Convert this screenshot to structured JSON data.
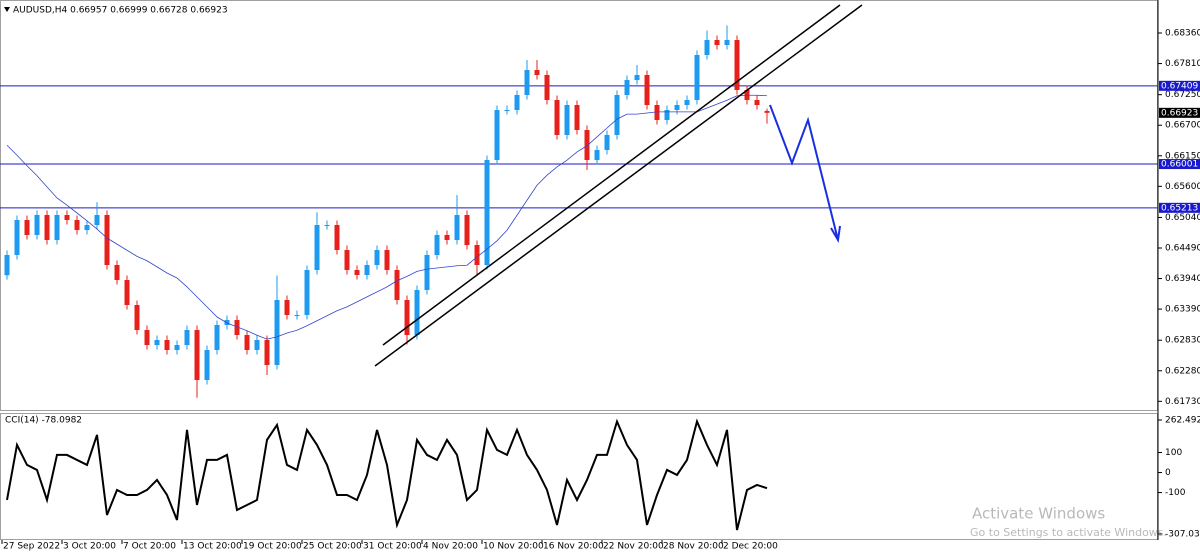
{
  "chart_data": [
    {
      "type": "candlestick",
      "title": "AUDUSD,H4 0.66957 0.66999 0.66728 0.66923",
      "categories": [
        "27 Sep 2022",
        null,
        null,
        null,
        null,
        null,
        "3 Oct 20:00",
        null,
        null,
        null,
        null,
        null,
        "7 Oct 20:00",
        null,
        null,
        null,
        null,
        null,
        "13 Oct 20:00",
        null,
        null,
        null,
        null,
        null,
        "19 Oct 20:00",
        null,
        null,
        null,
        null,
        null,
        "25 Oct 20:00",
        null,
        null,
        null,
        null,
        null,
        "31 Oct 20:00",
        null,
        null,
        null,
        null,
        null,
        "4 Nov 20:00",
        null,
        null,
        null,
        null,
        null,
        "10 Nov 20:00",
        null,
        null,
        null,
        null,
        null,
        "16 Nov 20:00",
        null,
        null,
        null,
        null,
        null,
        "22 Nov 20:00",
        null,
        null,
        null,
        null,
        null,
        "28 Nov 20:00",
        null,
        null,
        null,
        null,
        null,
        "2 Dec 20:00",
        null,
        null,
        null,
        null
      ],
      "open": [
        0.64,
        0.64364,
        0.64994,
        0.64724,
        0.65084,
        0.64634,
        0.65084,
        0.64994,
        0.64814,
        0.64904,
        0.65084,
        0.64184,
        0.63914,
        0.63464,
        0.63014,
        0.62744,
        0.62834,
        0.62654,
        0.62744,
        0.63014,
        0.62114,
        0.62654,
        0.63104,
        0.63194,
        0.62924,
        0.62654,
        0.62834,
        0.62384,
        0.63554,
        0.63284,
        0.63284,
        0.64094,
        0.64904,
        0.64904,
        0.64454,
        0.64094,
        0.64004,
        0.64184,
        0.64454,
        0.64094,
        0.63554,
        0.62924,
        0.63734,
        0.64364,
        0.64724,
        0.64634,
        0.65084,
        0.64544,
        0.64184,
        0.66074,
        0.66974,
        0.66974,
        0.67244,
        0.67694,
        0.67604,
        0.67154,
        0.66524,
        0.67064,
        0.66614,
        0.66074,
        0.66254,
        0.66524,
        0.67244,
        0.67514,
        0.67604,
        0.67064,
        0.66794,
        0.66974,
        0.67064,
        0.67154,
        0.67964,
        0.68234,
        0.68144,
        0.68234,
        0.67334,
        0.67154,
        0.66957
      ],
      "high": [
        0.64444,
        0.65074,
        0.65074,
        0.65164,
        0.65164,
        0.65164,
        0.65164,
        0.65074,
        0.64984,
        0.65314,
        0.65164,
        0.64264,
        0.63994,
        0.63544,
        0.63094,
        0.62914,
        0.62914,
        0.62824,
        0.63094,
        0.63094,
        0.62734,
        0.63184,
        0.63274,
        0.63274,
        0.63004,
        0.62914,
        0.62914,
        0.63994,
        0.63634,
        0.63364,
        0.64174,
        0.65134,
        0.64984,
        0.64984,
        0.64534,
        0.64174,
        0.64264,
        0.64534,
        0.64534,
        0.64174,
        0.63634,
        0.63814,
        0.64444,
        0.64804,
        0.64804,
        0.65444,
        0.65164,
        0.64624,
        0.66154,
        0.67054,
        0.67054,
        0.67324,
        0.67874,
        0.67874,
        0.67684,
        0.67234,
        0.67144,
        0.67144,
        0.66694,
        0.66334,
        0.66604,
        0.67324,
        0.67594,
        0.67784,
        0.67684,
        0.67144,
        0.67054,
        0.67144,
        0.67234,
        0.68044,
        0.68404,
        0.68314,
        0.68494,
        0.68314,
        0.67414,
        0.67234,
        0.66999
      ],
      "low": [
        0.6392,
        0.64284,
        0.64644,
        0.64644,
        0.64554,
        0.64554,
        0.64914,
        0.64734,
        0.64734,
        0.64824,
        0.64104,
        0.63834,
        0.63384,
        0.62934,
        0.62664,
        0.62664,
        0.62574,
        0.62574,
        0.62664,
        0.61794,
        0.62034,
        0.62574,
        0.63024,
        0.62844,
        0.62574,
        0.62574,
        0.62204,
        0.62304,
        0.63204,
        0.63204,
        0.63204,
        0.64014,
        0.64824,
        0.64374,
        0.64014,
        0.63924,
        0.63924,
        0.64104,
        0.64014,
        0.63474,
        0.62754,
        0.62844,
        0.63654,
        0.64284,
        0.64554,
        0.64554,
        0.64464,
        0.63994,
        0.64104,
        0.65994,
        0.66894,
        0.66894,
        0.67164,
        0.67524,
        0.67074,
        0.66444,
        0.66444,
        0.66534,
        0.65894,
        0.65994,
        0.66174,
        0.66444,
        0.67164,
        0.67434,
        0.66984,
        0.66714,
        0.66714,
        0.66894,
        0.66984,
        0.67074,
        0.67884,
        0.68064,
        0.68064,
        0.67254,
        0.67074,
        0.66984,
        0.66728
      ],
      "close": [
        0.64364,
        0.64994,
        0.64724,
        0.65084,
        0.64634,
        0.65084,
        0.64994,
        0.64814,
        0.64904,
        0.65084,
        0.64184,
        0.63914,
        0.63464,
        0.63014,
        0.62744,
        0.62834,
        0.62654,
        0.62744,
        0.63014,
        0.62114,
        0.62654,
        0.63104,
        0.63194,
        0.62924,
        0.62654,
        0.62834,
        0.62384,
        0.63554,
        0.63284,
        0.63284,
        0.64094,
        0.64904,
        0.64904,
        0.64454,
        0.64094,
        0.64004,
        0.64184,
        0.64454,
        0.64094,
        0.63554,
        0.62924,
        0.63734,
        0.64364,
        0.64724,
        0.64634,
        0.65084,
        0.64544,
        0.64184,
        0.66074,
        0.66974,
        0.66974,
        0.67244,
        0.67694,
        0.67604,
        0.67154,
        0.66524,
        0.67064,
        0.66614,
        0.66074,
        0.66254,
        0.66524,
        0.67244,
        0.67514,
        0.67604,
        0.67064,
        0.66794,
        0.66974,
        0.67064,
        0.67154,
        0.67964,
        0.68234,
        0.68144,
        0.68234,
        0.67334,
        0.67154,
        0.67064,
        0.66923
      ],
      "up_color": "#1e9bf0",
      "down_color": "#e8201c",
      "ma": {
        "color": "#3344cc",
        "values": [
          0.6634,
          0.6616,
          0.6597,
          0.6579,
          0.6559,
          0.6539,
          0.6526,
          0.6512,
          0.6498,
          0.6483,
          0.6467,
          0.6456,
          0.6445,
          0.6434,
          0.6426,
          0.6415,
          0.6404,
          0.6395,
          0.6379,
          0.6361,
          0.6343,
          0.6325,
          0.6314,
          0.6307,
          0.63,
          0.6292,
          0.6285,
          0.6289,
          0.6296,
          0.6301,
          0.6309,
          0.6318,
          0.6327,
          0.6336,
          0.6343,
          0.6352,
          0.6361,
          0.637,
          0.6379,
          0.639,
          0.6398,
          0.6407,
          0.6411,
          0.6413,
          0.6415,
          0.6417,
          0.6418,
          0.6433,
          0.6447,
          0.6462,
          0.6481,
          0.6508,
          0.6535,
          0.6562,
          0.658,
          0.6595,
          0.6607,
          0.6622,
          0.6633,
          0.6649,
          0.6665,
          0.6681,
          0.669,
          0.669,
          0.6692,
          0.6694,
          0.6694,
          0.6694,
          0.6694,
          0.6694,
          0.6701,
          0.6708,
          0.6715,
          0.6723,
          0.6724,
          0.6724,
          0.6723
        ]
      },
      "hlines": {
        "color": "#1a1acc",
        "values": [
          0.67409,
          0.66001,
          0.65213
        ]
      },
      "last_price": 0.66923,
      "ylim": [
        0.61574,
        0.68954
      ],
      "yticks": [
        {
          "value": 0.6836,
          "label": "0.68360"
        },
        {
          "value": 0.6781,
          "label": "0.67810"
        },
        {
          "value": 0.6725,
          "label": "0.67250"
        },
        {
          "value": 0.667,
          "label": "0.66700"
        },
        {
          "value": 0.6615,
          "label": "0.66150"
        },
        {
          "value": 0.656,
          "label": "0.65600"
        },
        {
          "value": 0.6504,
          "label": "0.65040"
        },
        {
          "value": 0.6449,
          "label": "0.64490"
        },
        {
          "value": 0.6394,
          "label": "0.63940"
        },
        {
          "value": 0.6339,
          "label": "0.63390"
        },
        {
          "value": 0.6283,
          "label": "0.62830"
        },
        {
          "value": 0.6228,
          "label": "0.62280"
        },
        {
          "value": 0.6173,
          "label": "0.61730"
        }
      ]
    },
    {
      "type": "line",
      "title": "CCI(14) -78.0982",
      "color": "#000000",
      "values": [
        -137,
        138,
        38,
        13,
        -137,
        88,
        88,
        63,
        38,
        188,
        -212,
        -87,
        -112,
        -112,
        -87,
        -37,
        -112,
        -237,
        213,
        -162,
        63,
        63,
        88,
        -187,
        -162,
        -137,
        163,
        238,
        38,
        13,
        213,
        138,
        38,
        -112,
        -112,
        -137,
        -12,
        213,
        38,
        -262,
        -137,
        163,
        88,
        63,
        163,
        88,
        -137,
        -87,
        213,
        113,
        88,
        213,
        88,
        13,
        -87,
        -262,
        -37,
        -137,
        -37,
        88,
        88,
        255,
        138,
        63,
        -262,
        -112,
        13,
        -12,
        63,
        255,
        138,
        38,
        213,
        -287,
        -87,
        -62,
        -78.0982
      ],
      "ylim": [
        -307.0359,
        262.4924
      ],
      "yticks": [
        262.4924,
        100,
        0,
        -100,
        -307.0359
      ]
    }
  ],
  "watermark": {
    "title": "Activate Windows",
    "subtitle": "Go to Settings to activate Windows."
  }
}
